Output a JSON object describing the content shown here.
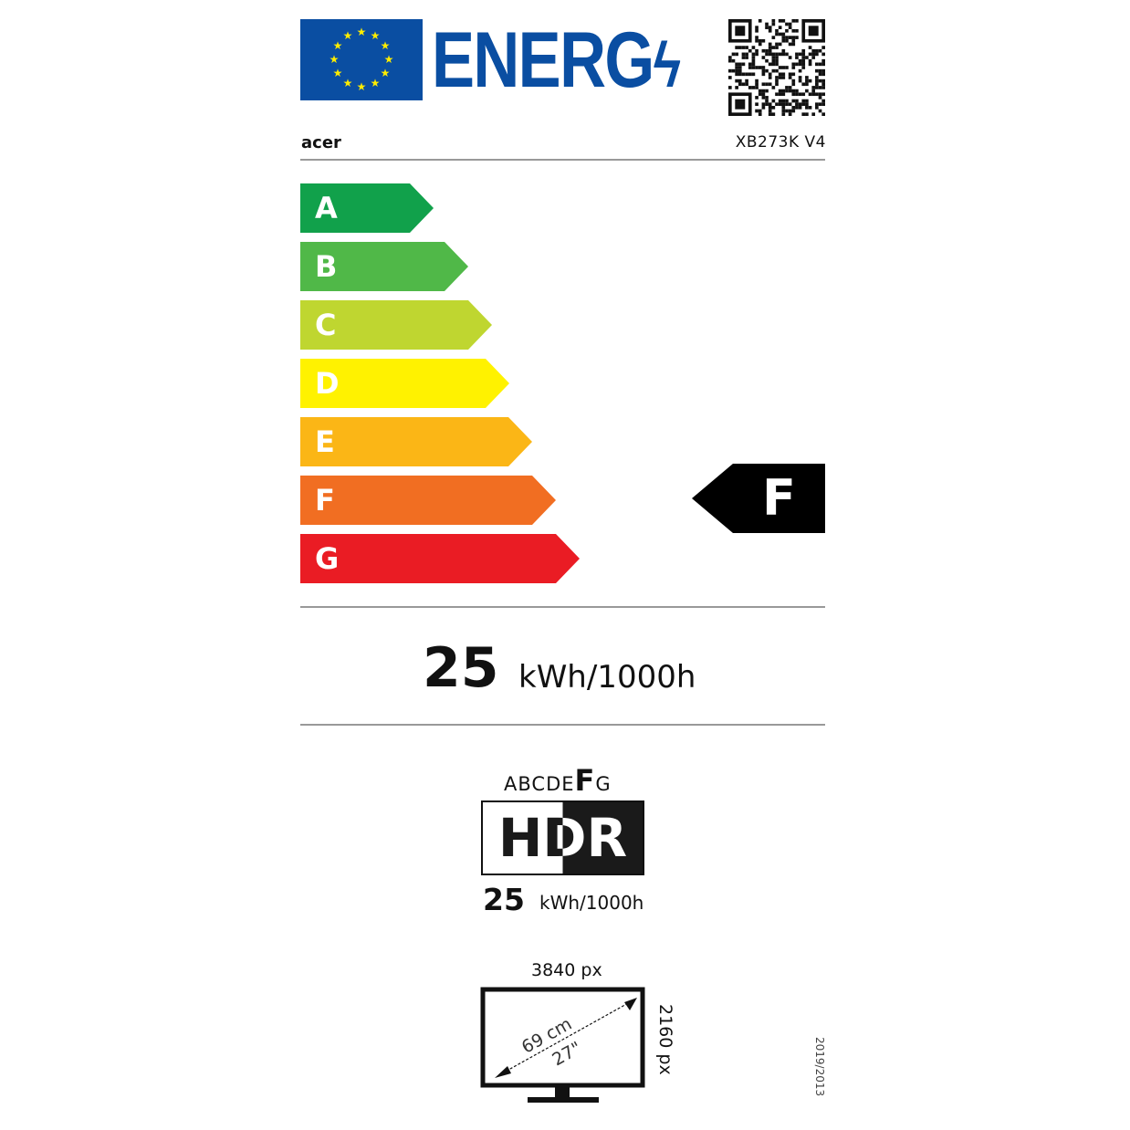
{
  "header": {
    "logo_text": "ENERG",
    "brand": "acer",
    "model": "XB273K V4"
  },
  "scale": {
    "classes": [
      {
        "letter": "A",
        "color": "#11a14b"
      },
      {
        "letter": "B",
        "color": "#50b848"
      },
      {
        "letter": "C",
        "color": "#bfd630"
      },
      {
        "letter": "D",
        "color": "#fff200"
      },
      {
        "letter": "E",
        "color": "#fbb616"
      },
      {
        "letter": "F",
        "color": "#f16e22"
      },
      {
        "letter": "G",
        "color": "#ea1c24"
      }
    ],
    "rating": "F"
  },
  "sdr": {
    "value": "25",
    "unit": "kWh/1000h"
  },
  "hdr": {
    "scale_prefix": "ABCDE",
    "scale_active": "F",
    "scale_suffix": "G",
    "label": "HDR",
    "value": "25",
    "unit": "kWh/1000h"
  },
  "screen": {
    "width_px": "3840 px",
    "height_px": "2160 px",
    "diag_cm": "69 cm",
    "diag_in": "27\""
  },
  "regulation": "2019/2013",
  "colors": {
    "eu_blue": "#0a4ea2",
    "star": "#ffed00"
  }
}
